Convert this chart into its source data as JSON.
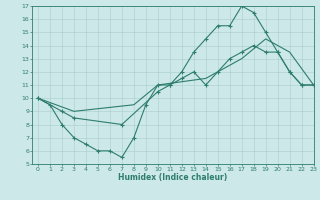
{
  "line1_x": [
    0,
    1,
    2,
    3,
    4,
    5,
    6,
    7,
    8,
    9,
    10,
    11,
    12,
    13,
    14,
    15,
    16,
    17,
    18,
    19,
    20,
    21,
    22,
    23
  ],
  "line1_y": [
    10,
    9.5,
    8,
    7,
    6.5,
    6,
    6,
    5.5,
    7,
    9.5,
    11,
    11,
    12,
    13.5,
    14.5,
    15.5,
    15.5,
    17,
    16.5,
    15,
    13.5,
    12,
    11,
    11
  ],
  "line2_x": [
    0,
    2,
    3,
    7,
    10,
    11,
    12,
    13,
    14,
    15,
    16,
    17,
    18,
    19,
    20,
    21,
    22,
    23
  ],
  "line2_y": [
    10,
    9,
    8.5,
    8,
    10.5,
    11,
    11.5,
    12,
    11,
    12,
    13,
    13.5,
    14,
    13.5,
    13.5,
    12,
    11,
    11
  ],
  "line3_x": [
    0,
    3,
    8,
    10,
    14,
    17,
    19,
    21,
    23
  ],
  "line3_y": [
    10,
    9,
    9.5,
    11,
    11.5,
    13,
    14.5,
    13.5,
    11
  ],
  "color": "#2e7d6e",
  "bg_color": "#cce8e8",
  "grid_color": "#aacccc",
  "xlabel": "Humidex (Indice chaleur)",
  "xlim": [
    -0.5,
    23
  ],
  "ylim": [
    5,
    17
  ],
  "yticks": [
    5,
    6,
    7,
    8,
    9,
    10,
    11,
    12,
    13,
    14,
    15,
    16,
    17
  ],
  "xticks": [
    0,
    1,
    2,
    3,
    4,
    5,
    6,
    7,
    8,
    9,
    10,
    11,
    12,
    13,
    14,
    15,
    16,
    17,
    18,
    19,
    20,
    21,
    22,
    23
  ]
}
